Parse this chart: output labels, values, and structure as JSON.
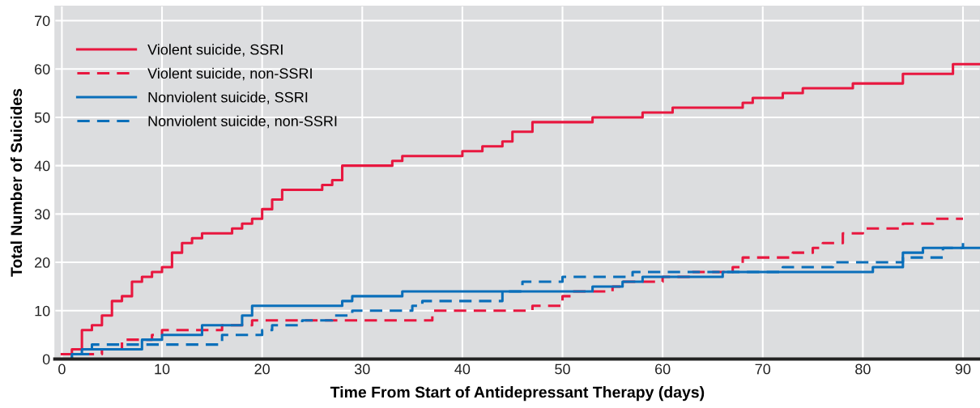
{
  "chart_data": {
    "type": "step",
    "xlabel": "Time From Start of Antidepressant Therapy (days)",
    "ylabel": "Total Number of Suicides",
    "xlim": [
      -0.7,
      91.7
    ],
    "ylim": [
      0,
      73
    ],
    "xticks": [
      0,
      10,
      20,
      30,
      40,
      50,
      60,
      70,
      80,
      90
    ],
    "yticks": [
      0,
      10,
      20,
      30,
      40,
      50,
      60,
      70
    ],
    "grid": true,
    "legend": "top left",
    "series": [
      {
        "name": "Violent suicide, SSRI",
        "color": "#e8173f",
        "line_style": "solid",
        "x": [
          0,
          1,
          2,
          3,
          4,
          5,
          6,
          7,
          8,
          9,
          10,
          11,
          12,
          13,
          14,
          17,
          18,
          19,
          20,
          21,
          22,
          26,
          27,
          28,
          33,
          34,
          40,
          42,
          44,
          45,
          47,
          53,
          58,
          61,
          68,
          69,
          72,
          74,
          79,
          84,
          89,
          91.7
        ],
        "values": [
          1,
          2,
          6,
          7,
          9,
          12,
          13,
          16,
          17,
          18,
          19,
          22,
          24,
          25,
          26,
          27,
          28,
          29,
          31,
          33,
          35,
          36,
          37,
          40,
          41,
          42,
          43,
          44,
          45,
          47,
          49,
          50,
          51,
          52,
          53,
          54,
          55,
          56,
          57,
          59,
          61,
          61
        ]
      },
      {
        "name": "Violent suicide, non-SSRI",
        "color": "#e8173f",
        "line_style": "dashed",
        "x": [
          0,
          4,
          6,
          9,
          10,
          16,
          19,
          37,
          47,
          50,
          51,
          55,
          56,
          60,
          63,
          67,
          68,
          73,
          75,
          76,
          78,
          80,
          84,
          87,
          90
        ],
        "values": [
          1,
          2,
          4,
          5,
          6,
          7,
          8,
          10,
          11,
          13,
          14,
          15,
          16,
          17,
          18,
          19,
          21,
          22,
          23,
          24,
          26,
          27,
          28,
          29,
          29
        ]
      },
      {
        "name": "Nonviolent suicide, SSRI",
        "color": "#0a6fba",
        "line_style": "solid",
        "x": [
          0,
          1,
          2,
          8,
          10,
          14,
          18,
          19,
          28,
          29,
          34,
          53,
          56,
          58,
          66,
          81,
          84,
          86,
          91.7
        ],
        "values": [
          0,
          1,
          2,
          4,
          5,
          7,
          9,
          11,
          12,
          13,
          14,
          15,
          16,
          17,
          18,
          19,
          22,
          23,
          23
        ]
      },
      {
        "name": "Nonviolent suicide, non-SSRI",
        "color": "#0a6fba",
        "line_style": "dashed",
        "x": [
          0,
          1,
          3,
          16,
          20,
          21,
          24,
          27,
          29,
          35,
          36,
          44,
          46,
          50,
          57,
          72,
          77,
          84,
          88,
          90
        ],
        "values": [
          0,
          1,
          3,
          5,
          6,
          7,
          8,
          9,
          10,
          11,
          12,
          14,
          16,
          17,
          18,
          19,
          20,
          21,
          23,
          24
        ]
      }
    ]
  }
}
